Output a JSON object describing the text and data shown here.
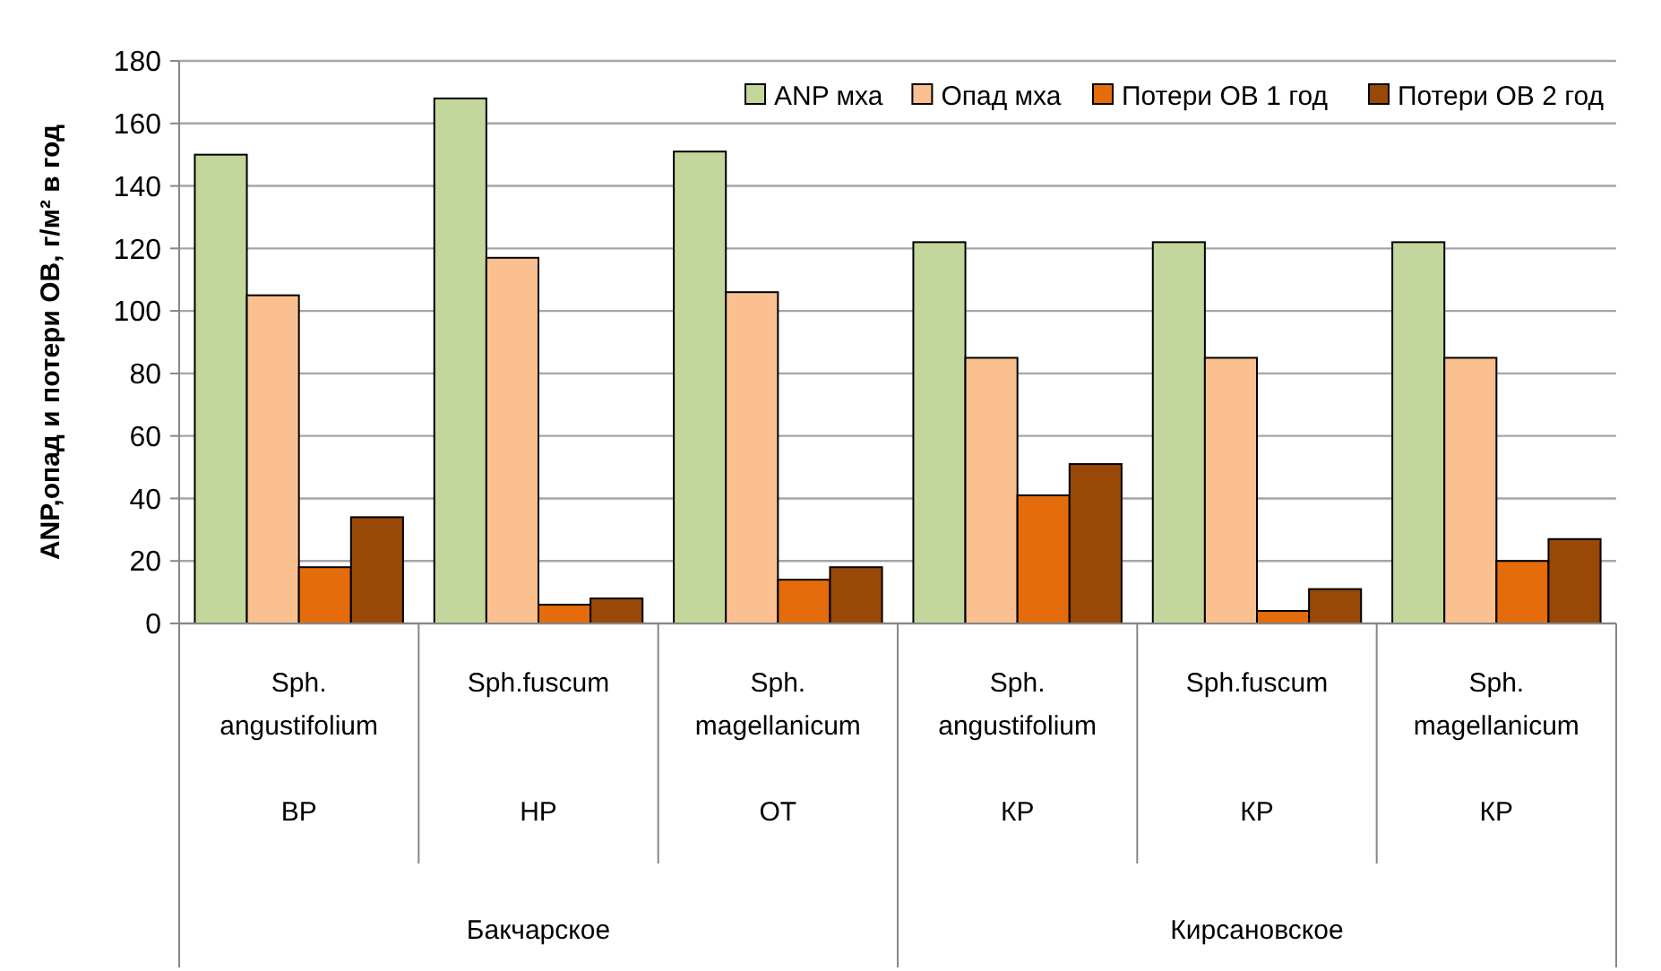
{
  "chart_data": {
    "type": "bar",
    "ylabel": "ANP,опад и потери ОВ, г/м² в год",
    "categories": [
      "Sph.\nangustifolium\n\nВР",
      "Sph.fuscum\n\n\nНР",
      "Sph.\nmagellanicum\n\nОТ",
      "Sph.\nangustifolium\n\nКР",
      "Sph.fuscum\n\n\nКР",
      "Sph.\nmagellanicum\n\nКР"
    ],
    "series": [
      {
        "name": "ANP мха",
        "color": "#c3d69b",
        "values": [
          150,
          168,
          151,
          122,
          122,
          122
        ]
      },
      {
        "name": "Опад мха",
        "color": "#fac090",
        "values": [
          105,
          117,
          106,
          85,
          85,
          85
        ]
      },
      {
        "name": "Потери ОВ 1 год",
        "color": "#e46c0a",
        "values": [
          18,
          6,
          14,
          41,
          4,
          20
        ]
      },
      {
        "name": "Потери ОВ 2 год",
        "color": "#984807",
        "values": [
          34,
          8,
          18,
          51,
          11,
          27
        ]
      }
    ],
    "annotations": [
      "Бакчарское",
      "Кирсановское"
    ],
    "ylim": [
      0,
      180
    ],
    "yticks": [
      0,
      20,
      40,
      60,
      80,
      100,
      120,
      140,
      160,
      180
    ],
    "grid": "y",
    "legend": "top right"
  }
}
